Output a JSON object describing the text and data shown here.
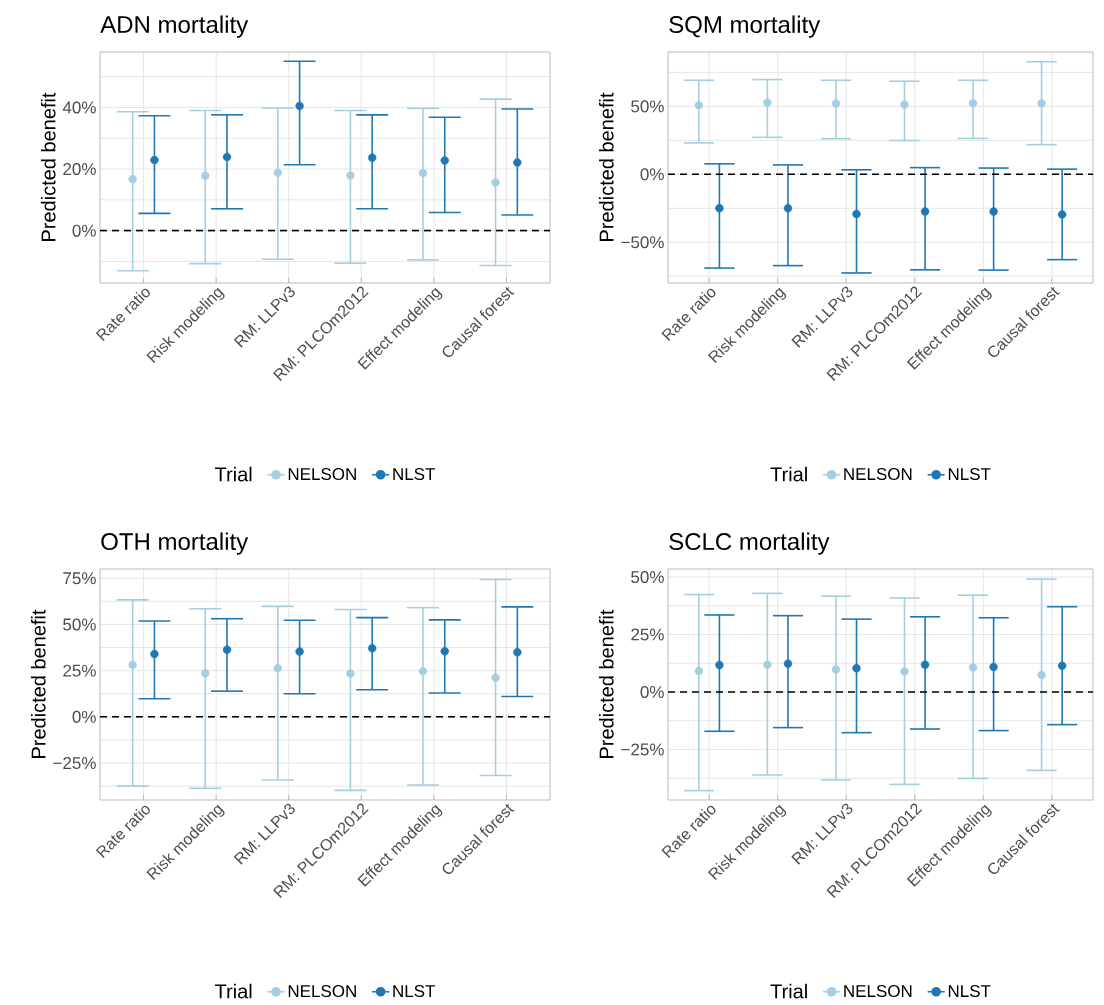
{
  "chart_data": [
    {
      "type": "scatter",
      "title": "ADN mortality",
      "ylabel": "Predicted benefit",
      "categories": [
        "Rate ratio",
        "Risk modeling",
        "RM: LLPv3",
        "RM: PLCOm2012",
        "Effect modeling",
        "Causal forest"
      ],
      "series": [
        {
          "name": "NELSON",
          "color": "#a6cee3",
          "values": [
            16.7,
            17.8,
            18.8,
            17.9,
            18.7,
            15.6
          ],
          "errors": [
            [
              -13.0,
              38.6
            ],
            [
              -10.7,
              39.0
            ],
            [
              -9.3,
              39.8
            ],
            [
              -10.6,
              39.0
            ],
            [
              -9.5,
              39.7
            ],
            [
              -11.3,
              42.7
            ]
          ]
        },
        {
          "name": "NLST",
          "color": "#1f78b4",
          "values": [
            22.9,
            23.9,
            40.5,
            23.7,
            22.8,
            22.1
          ],
          "errors": [
            [
              5.6,
              37.3
            ],
            [
              7.1,
              37.6
            ],
            [
              21.4,
              55.0
            ],
            [
              7.1,
              37.6
            ],
            [
              5.9,
              36.8
            ],
            [
              5.1,
              39.5
            ]
          ]
        }
      ],
      "ylim": [
        -17,
        58
      ],
      "yticks": [
        {
          "value": -10,
          "label": null
        },
        {
          "value": 0,
          "label": "0%"
        },
        {
          "value": 10,
          "label": null
        },
        {
          "value": 20,
          "label": "20%"
        },
        {
          "value": 30,
          "label": null
        },
        {
          "value": 40,
          "label": "40%"
        },
        {
          "value": 50,
          "label": null
        }
      ],
      "grid": true,
      "legend": "bottom",
      "legend_title": "Trial",
      "marker": "circle",
      "ref_lines": [
        {
          "axis": "y",
          "value": 0,
          "line_style": "dashed",
          "color": "#000000"
        }
      ]
    },
    {
      "type": "scatter",
      "title": "SQM mortality",
      "ylabel": "Predicted benefit",
      "categories": [
        "Rate ratio",
        "Risk modeling",
        "RM: LLPv3",
        "RM: PLCOm2012",
        "Effect modeling",
        "Causal forest"
      ],
      "series": [
        {
          "name": "NELSON",
          "color": "#a6cee3",
          "values": [
            50.8,
            52.8,
            52.1,
            51.3,
            52.3,
            52.3
          ],
          "errors": [
            [
              23.1,
              69.2
            ],
            [
              27.2,
              69.7
            ],
            [
              26.2,
              69.2
            ],
            [
              24.9,
              68.5
            ],
            [
              26.4,
              69.2
            ],
            [
              21.8,
              82.8
            ]
          ]
        },
        {
          "name": "NLST",
          "color": "#1f78b4",
          "values": [
            -24.9,
            -24.9,
            -29.2,
            -27.4,
            -27.4,
            -29.5
          ],
          "errors": [
            [
              -69.0,
              7.7
            ],
            [
              -67.2,
              6.9
            ],
            [
              -72.6,
              3.3
            ],
            [
              -70.3,
              4.9
            ],
            [
              -70.5,
              4.6
            ],
            [
              -62.8,
              3.8
            ]
          ]
        }
      ],
      "ylim": [
        -80,
        90
      ],
      "yticks": [
        {
          "value": -75,
          "label": null
        },
        {
          "value": -50,
          "label": "−50%"
        },
        {
          "value": -25,
          "label": null
        },
        {
          "value": 0,
          "label": "0%"
        },
        {
          "value": 25,
          "label": null
        },
        {
          "value": 50,
          "label": "50%"
        },
        {
          "value": 75,
          "label": null
        }
      ],
      "grid": true,
      "legend": "bottom",
      "legend_title": "Trial",
      "marker": "circle",
      "ref_lines": [
        {
          "axis": "y",
          "value": 0,
          "line_style": "dashed",
          "color": "#000000"
        }
      ]
    },
    {
      "type": "scatter",
      "title": "OTH mortality",
      "ylabel": "Predicted benefit",
      "categories": [
        "Rate ratio",
        "Risk modeling",
        "RM: LLPv3",
        "RM: PLCOm2012",
        "Effect modeling",
        "Causal forest"
      ],
      "series": [
        {
          "name": "NELSON",
          "color": "#a6cee3",
          "values": [
            28.0,
            23.6,
            26.3,
            23.4,
            24.7,
            21.2
          ],
          "errors": [
            [
              -37.5,
              63.3
            ],
            [
              -38.6,
              58.5
            ],
            [
              -34.2,
              59.8
            ],
            [
              -39.8,
              58.1
            ],
            [
              -36.9,
              59.1
            ],
            [
              -31.7,
              74.3
            ]
          ]
        },
        {
          "name": "NLST",
          "color": "#1f78b4",
          "values": [
            34.0,
            36.3,
            35.3,
            37.1,
            35.5,
            34.9
          ],
          "errors": [
            [
              9.8,
              51.9
            ],
            [
              13.9,
              53.1
            ],
            [
              12.5,
              52.3
            ],
            [
              14.7,
              53.7
            ],
            [
              12.9,
              52.5
            ],
            [
              11.0,
              59.5
            ]
          ]
        }
      ],
      "ylim": [
        -45,
        80
      ],
      "yticks": [
        {
          "value": -37.5,
          "label": null
        },
        {
          "value": -25,
          "label": "−25%"
        },
        {
          "value": -12.5,
          "label": null
        },
        {
          "value": 0,
          "label": "0%"
        },
        {
          "value": 12.5,
          "label": null
        },
        {
          "value": 25,
          "label": "25%"
        },
        {
          "value": 37.5,
          "label": null
        },
        {
          "value": 50,
          "label": "50%"
        },
        {
          "value": 62.5,
          "label": null
        },
        {
          "value": 75,
          "label": "75%"
        }
      ],
      "grid": true,
      "legend": "bottom",
      "legend_title": "Trial",
      "marker": "circle",
      "ref_lines": [
        {
          "axis": "y",
          "value": 0,
          "line_style": "dashed",
          "color": "#000000"
        }
      ]
    },
    {
      "type": "scatter",
      "title": "SCLC mortality",
      "ylabel": "Predicted benefit",
      "categories": [
        "Rate ratio",
        "Risk modeling",
        "RM: LLPv3",
        "RM: PLCOm2012",
        "Effect modeling",
        "Causal forest"
      ],
      "series": [
        {
          "name": "NELSON",
          "color": "#a6cee3",
          "values": [
            9.1,
            11.8,
            9.8,
            8.9,
            10.6,
            7.4
          ],
          "errors": [
            [
              -42.9,
              42.4
            ],
            [
              -36.1,
              42.9
            ],
            [
              -38.3,
              41.7
            ],
            [
              -40.2,
              40.9
            ],
            [
              -37.6,
              42.1
            ],
            [
              -34.1,
              49.1
            ]
          ]
        },
        {
          "name": "NLST",
          "color": "#1f78b4",
          "values": [
            11.7,
            12.3,
            10.3,
            11.8,
            10.9,
            11.4
          ],
          "errors": [
            [
              -17.1,
              33.5
            ],
            [
              -15.5,
              33.2
            ],
            [
              -17.7,
              31.7
            ],
            [
              -16.1,
              32.7
            ],
            [
              -16.8,
              32.3
            ],
            [
              -14.2,
              37.1
            ]
          ]
        }
      ],
      "ylim": [
        -47,
        53.5
      ],
      "yticks": [
        {
          "value": -37.5,
          "label": null
        },
        {
          "value": -25,
          "label": "−25%"
        },
        {
          "value": -12.5,
          "label": null
        },
        {
          "value": 0,
          "label": "0%"
        },
        {
          "value": 12.5,
          "label": null
        },
        {
          "value": 25,
          "label": "25%"
        },
        {
          "value": 37.5,
          "label": null
        },
        {
          "value": 50,
          "label": "50%"
        }
      ],
      "grid": true,
      "legend": "bottom",
      "legend_title": "Trial",
      "marker": "circle",
      "ref_lines": [
        {
          "axis": "y",
          "value": 0,
          "line_style": "dashed",
          "color": "#000000"
        }
      ]
    }
  ]
}
